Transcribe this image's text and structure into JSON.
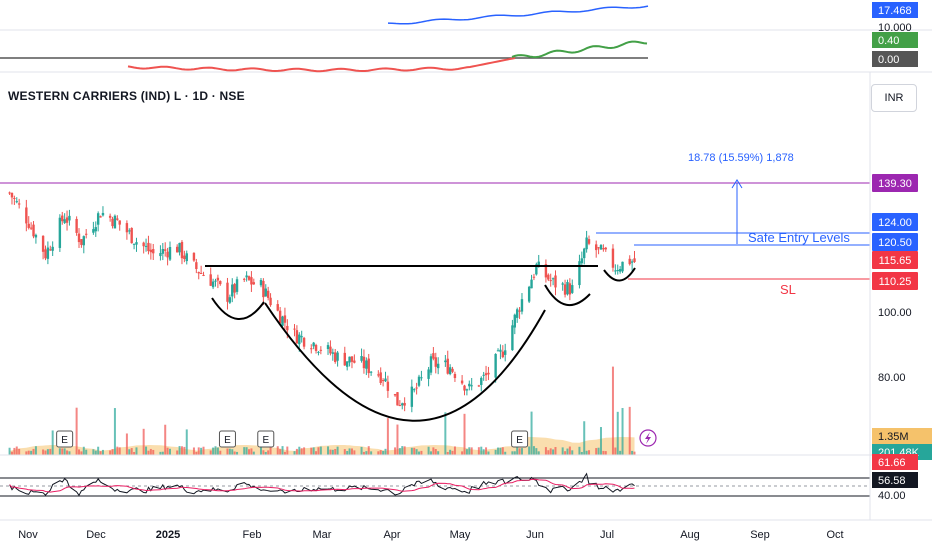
{
  "header": {
    "symbol_title": "WESTERN CARRIERS (IND) L · 1D · NSE",
    "currency": "INR"
  },
  "chart_data": {
    "type": "candlestick",
    "timeframe": "1D",
    "price_axis": {
      "ticks": [
        100.0,
        80.0
      ],
      "highlight_labels": [
        {
          "value": "139.30",
          "color": "#9c27b0"
        },
        {
          "value": "124.00",
          "color": "#2962ff"
        },
        {
          "value": "120.50",
          "color": "#2962ff"
        },
        {
          "value": "115.65",
          "color": "#f23645"
        },
        {
          "value": "110.25",
          "color": "#f23645"
        }
      ]
    },
    "time_axis": [
      "Nov",
      "Dec",
      "2025",
      "Feb",
      "Mar",
      "Apr",
      "May",
      "Jun",
      "Jul",
      "Aug",
      "Sep",
      "Oct"
    ],
    "price_path": [
      [
        "2024-10-28",
        137
      ],
      [
        "2024-11-05",
        128
      ],
      [
        "2024-11-12",
        118
      ],
      [
        "2024-11-20",
        130
      ],
      [
        "2024-11-27",
        122
      ],
      [
        "2024-12-05",
        131
      ],
      [
        "2024-12-12",
        128
      ],
      [
        "2024-12-20",
        122
      ],
      [
        "2024-12-27",
        118
      ],
      [
        "2025-01-06",
        120
      ],
      [
        "2025-01-13",
        114
      ],
      [
        "2025-01-20",
        110
      ],
      [
        "2025-01-27",
        105
      ],
      [
        "2025-02-03",
        110
      ],
      [
        "2025-02-10",
        108
      ],
      [
        "2025-02-17",
        100
      ],
      [
        "2025-02-24",
        93
      ],
      [
        "2025-03-05",
        90
      ],
      [
        "2025-03-14",
        86
      ],
      [
        "2025-03-24",
        84
      ],
      [
        "2025-04-02",
        80
      ],
      [
        "2025-04-08",
        72
      ],
      [
        "2025-04-15",
        75
      ],
      [
        "2025-04-22",
        84
      ],
      [
        "2025-04-30",
        83
      ],
      [
        "2025-05-08",
        76
      ],
      [
        "2025-05-15",
        80
      ],
      [
        "2025-05-22",
        88
      ],
      [
        "2025-05-29",
        102
      ],
      [
        "2025-06-05",
        114
      ],
      [
        "2025-06-12",
        109
      ],
      [
        "2025-06-20",
        107
      ],
      [
        "2025-06-26",
        121
      ],
      [
        "2025-07-03",
        118
      ],
      [
        "2025-07-08",
        114
      ],
      [
        "2025-07-14",
        116
      ],
      [
        "2025-07-16",
        115.65
      ]
    ],
    "annotations": {
      "resistance_label": "139.30",
      "measure_label": "18.78 (15.59%) 1,878",
      "safe_entry_label": "Safe Entry Levels",
      "sl_label": "SL",
      "pattern": "cup and handle (drawn curves)",
      "event_markers": [
        "E",
        "E",
        "E",
        "E"
      ]
    },
    "volume": {
      "last_label": "1.35M",
      "ma_label": "201.48K"
    },
    "rsi": {
      "labels": [
        "61.66",
        "56.58",
        "40.00"
      ]
    },
    "upper_indicator": {
      "labels": [
        "17.468",
        "10.000",
        "0.40",
        "0.00"
      ]
    }
  },
  "colors": {
    "up": "#26a69a",
    "down": "#ef5350",
    "resistance": "#9c27b0",
    "entry": "#2962ff",
    "sl": "#f23645",
    "volume_area": "#f5c26b",
    "rsi_line": "#131722",
    "rsi_ma": "#e91e63"
  }
}
